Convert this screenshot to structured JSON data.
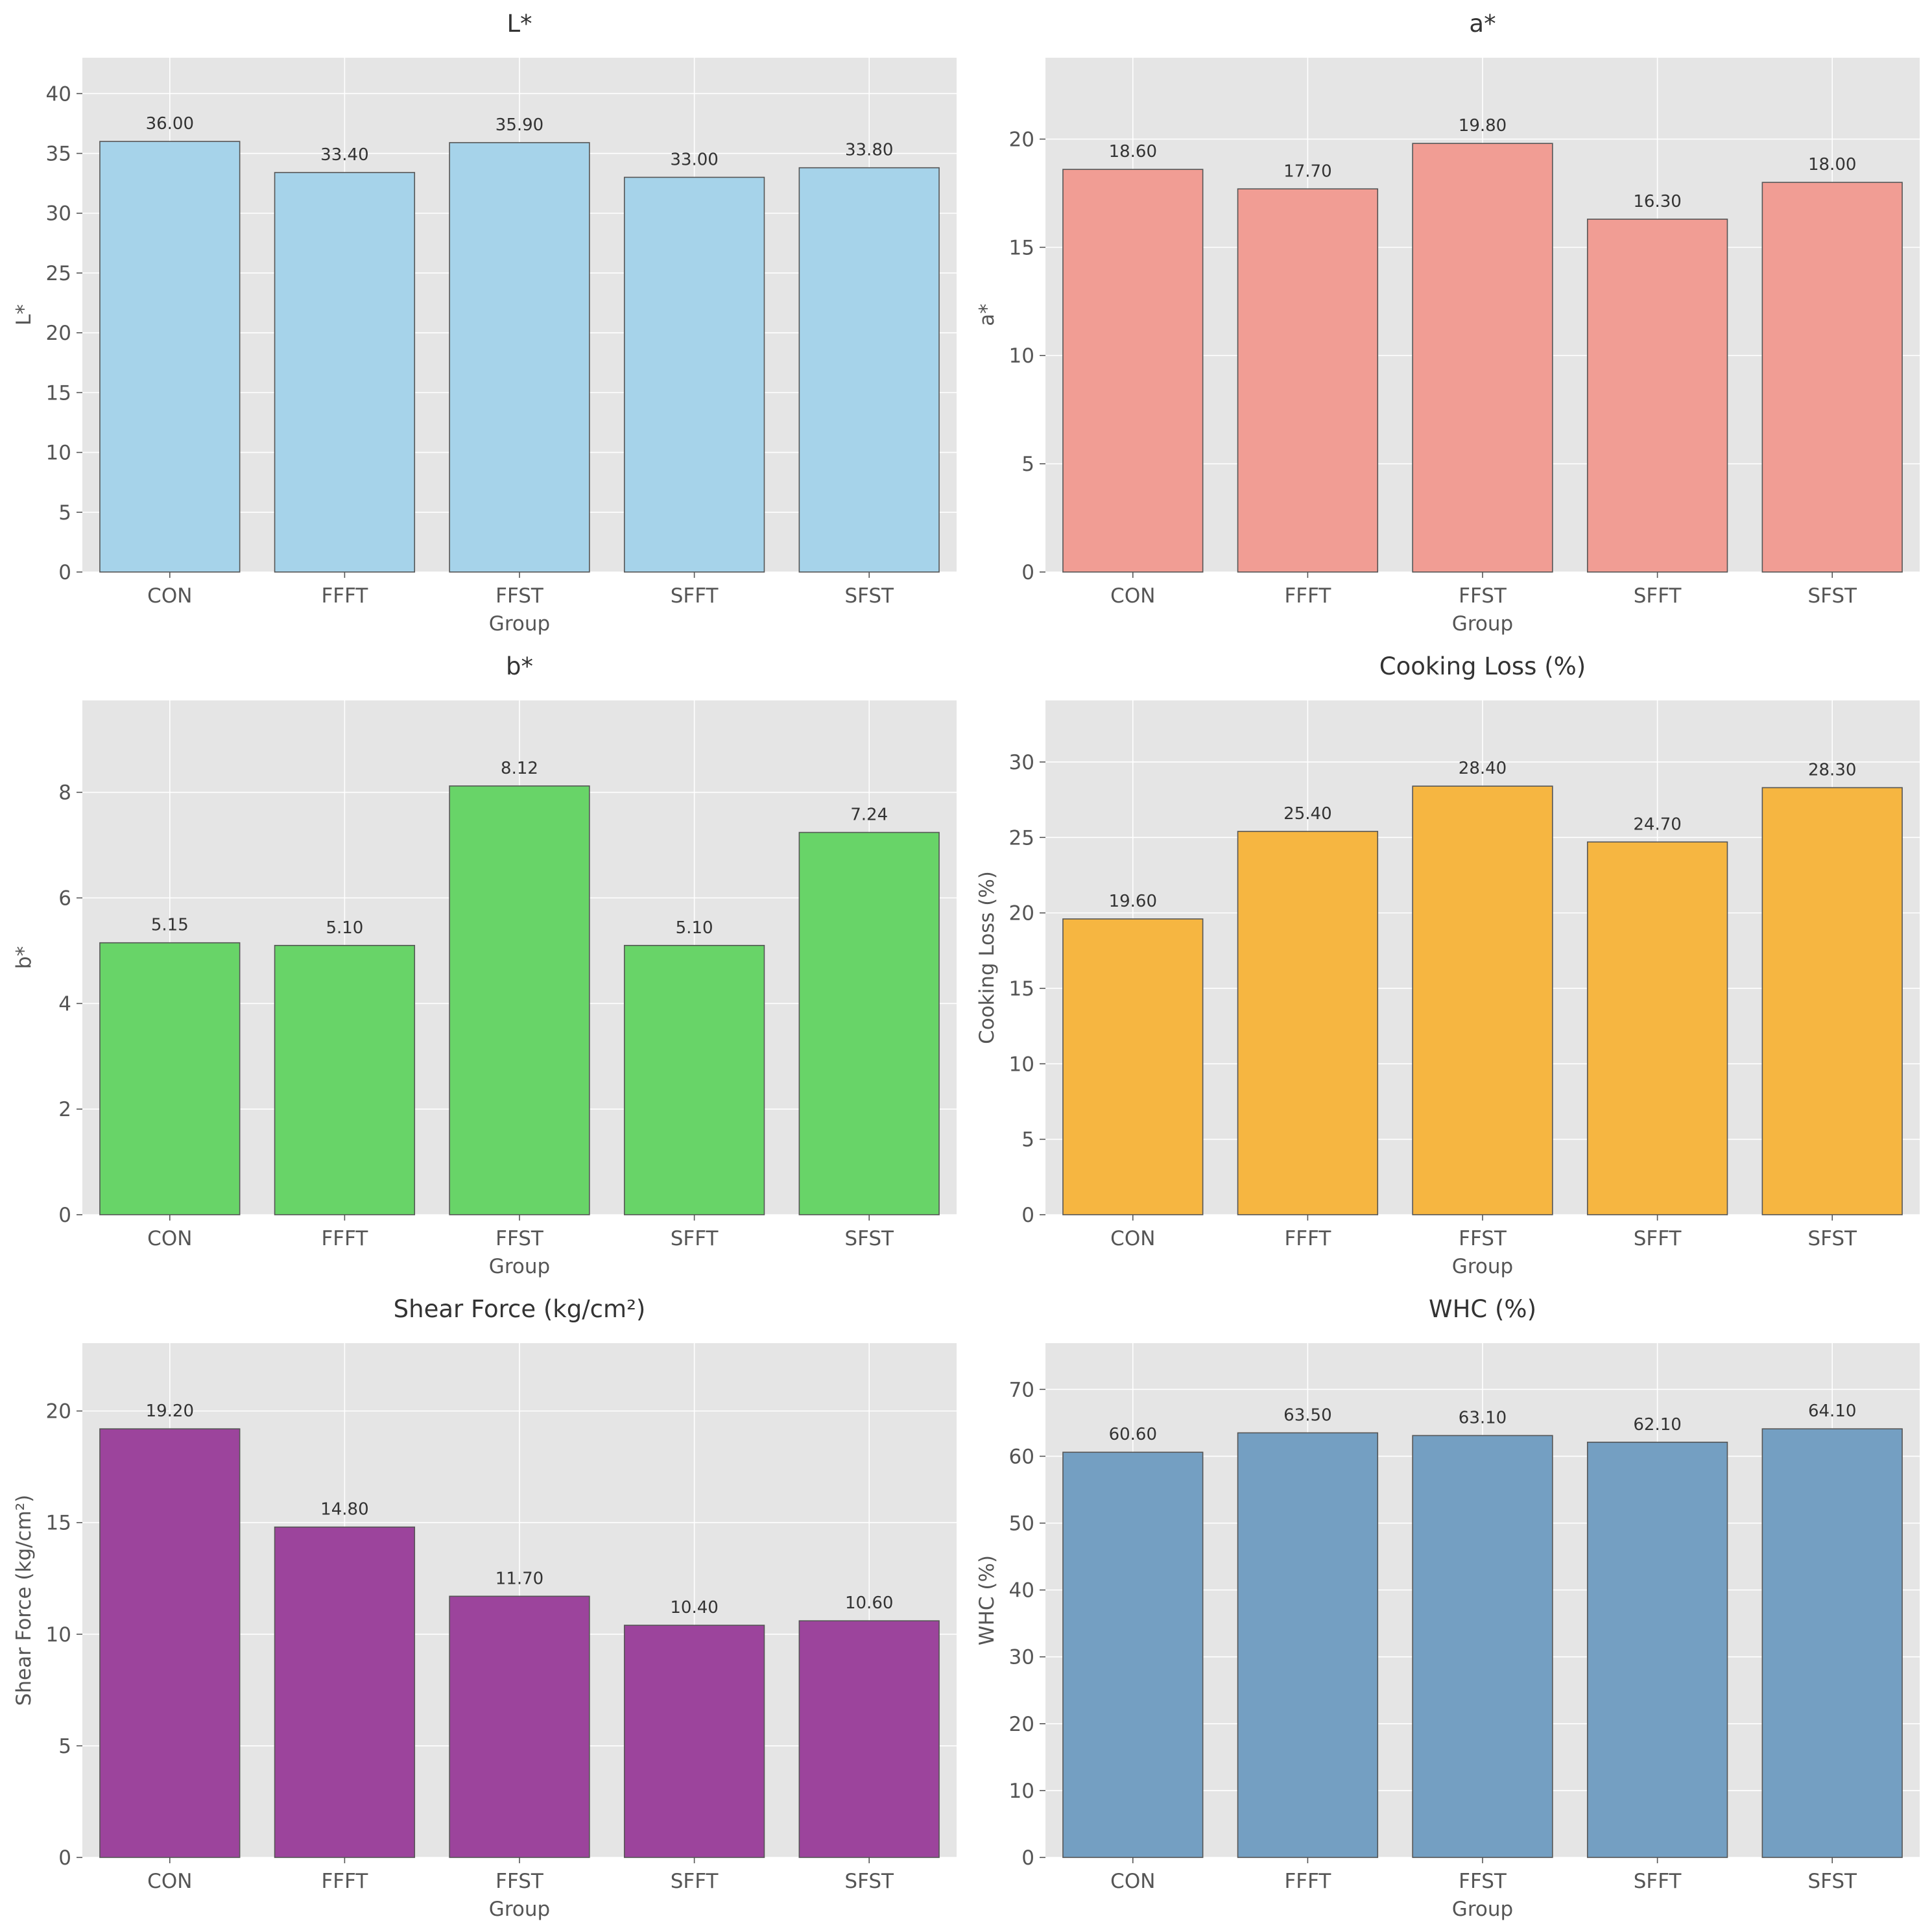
{
  "chart_data": [
    {
      "type": "bar",
      "title": "L*",
      "xlabel": "Group",
      "ylabel": "L*",
      "categories": [
        "CON",
        "FFFT",
        "FFST",
        "SFFT",
        "SFST"
      ],
      "values": [
        36.0,
        33.4,
        35.9,
        33.0,
        33.8
      ],
      "value_labels": [
        "36.00",
        "33.40",
        "35.90",
        "33.00",
        "33.80"
      ],
      "ylim": [
        0,
        43
      ],
      "yticks": [
        0,
        5,
        10,
        15,
        20,
        25,
        30,
        35,
        40
      ],
      "color": "#a6d3ea",
      "grid": true
    },
    {
      "type": "bar",
      "title": "a*",
      "xlabel": "Group",
      "ylabel": "a*",
      "categories": [
        "CON",
        "FFFT",
        "FFST",
        "SFFT",
        "SFST"
      ],
      "values": [
        18.6,
        17.7,
        19.8,
        16.3,
        18.0
      ],
      "value_labels": [
        "18.60",
        "17.70",
        "19.80",
        "16.30",
        "18.00"
      ],
      "ylim": [
        0,
        23.76
      ],
      "yticks": [
        0,
        5,
        10,
        15,
        20
      ],
      "color": "#f19d94",
      "grid": true
    },
    {
      "type": "bar",
      "title": "b*",
      "xlabel": "Group",
      "ylabel": "b*",
      "categories": [
        "CON",
        "FFFT",
        "FFST",
        "SFFT",
        "SFST"
      ],
      "values": [
        5.15,
        5.1,
        8.12,
        5.1,
        7.24
      ],
      "value_labels": [
        "5.15",
        "5.10",
        "8.12",
        "5.10",
        "7.24"
      ],
      "ylim": [
        0,
        9.74
      ],
      "yticks": [
        0,
        2,
        4,
        6,
        8
      ],
      "color": "#68d468",
      "grid": true
    },
    {
      "type": "bar",
      "title": "Cooking Loss (%)",
      "xlabel": "Group",
      "ylabel": "Cooking Loss (%)",
      "categories": [
        "CON",
        "FFFT",
        "FFST",
        "SFFT",
        "SFST"
      ],
      "values": [
        19.6,
        25.4,
        28.4,
        24.7,
        28.3
      ],
      "value_labels": [
        "19.60",
        "25.40",
        "28.40",
        "24.70",
        "28.30"
      ],
      "ylim": [
        0,
        34.08
      ],
      "yticks": [
        0,
        5,
        10,
        15,
        20,
        25,
        30
      ],
      "color": "#f6b641",
      "grid": true
    },
    {
      "type": "bar",
      "title": "Shear Force (kg/cm²)",
      "xlabel": "Group",
      "ylabel": "Shear Force (kg/cm²)",
      "categories": [
        "CON",
        "FFFT",
        "FFST",
        "SFFT",
        "SFST"
      ],
      "values": [
        19.2,
        14.8,
        11.7,
        10.4,
        10.6
      ],
      "value_labels": [
        "19.20",
        "14.80",
        "11.70",
        "10.40",
        "10.60"
      ],
      "ylim": [
        0,
        23.04
      ],
      "yticks": [
        0,
        5,
        10,
        15,
        20
      ],
      "color": "#9c449c",
      "grid": true
    },
    {
      "type": "bar",
      "title": "WHC (%)",
      "xlabel": "Group",
      "ylabel": "WHC (%)",
      "categories": [
        "CON",
        "FFFT",
        "FFST",
        "SFFT",
        "SFST"
      ],
      "values": [
        60.6,
        63.5,
        63.1,
        62.1,
        64.1
      ],
      "value_labels": [
        "60.60",
        "63.50",
        "63.10",
        "62.10",
        "64.10"
      ],
      "ylim": [
        0,
        76.92
      ],
      "yticks": [
        0,
        10,
        20,
        30,
        40,
        50,
        60,
        70
      ],
      "color": "#749fc2",
      "grid": true
    }
  ]
}
